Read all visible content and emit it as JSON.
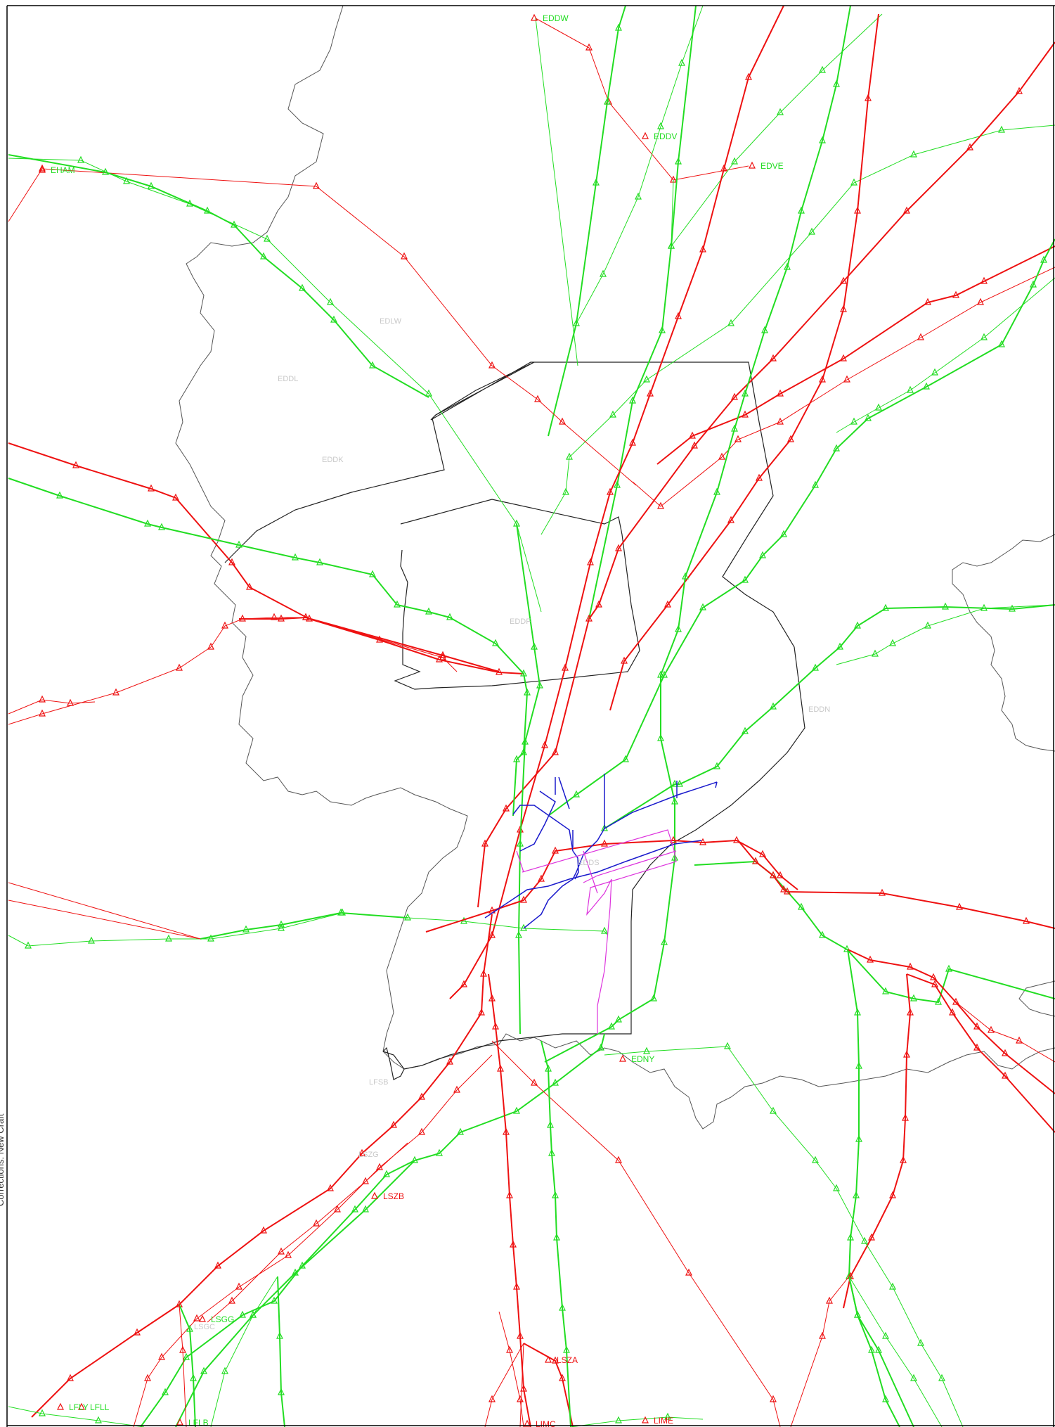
{
  "side_caption": "Corrections: New Craft",
  "colors": {
    "green": "#22dd22",
    "red": "#ee1111",
    "blue": "#1a1acc",
    "magenta": "#dd33dd",
    "border": "#555555",
    "sector": "#222222",
    "airport_gray": "#c8c8c8"
  },
  "waypoints": [
    {
      "name": "EDDW",
      "color": "green"
    },
    {
      "name": "EDDV",
      "color": "green"
    },
    {
      "name": "EDVE",
      "color": "green"
    },
    {
      "name": "EHAM",
      "color": "green"
    },
    {
      "name": "EDNY",
      "color": "green"
    },
    {
      "name": "LSZB",
      "color": "red"
    },
    {
      "name": "LSGG",
      "color": "green"
    },
    {
      "name": "LSZA",
      "color": "red"
    },
    {
      "name": "LIME",
      "color": "red"
    },
    {
      "name": "LIMC",
      "color": "red"
    },
    {
      "name": "LFLB",
      "color": "green"
    },
    {
      "name": "LFLL",
      "color": "green"
    },
    {
      "name": "LFLY",
      "color": "green"
    }
  ],
  "airports": [
    "EDLW",
    "EDDL",
    "EDDK",
    "EDDF",
    "EDDN",
    "EDDS",
    "LFSB",
    "LSZG",
    "LSGC"
  ]
}
